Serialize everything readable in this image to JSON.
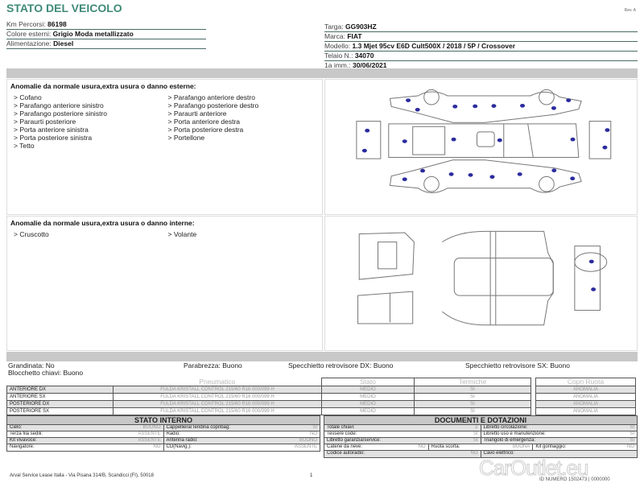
{
  "header": {
    "title": "STATO DEL VEICOLO",
    "rev": "Rev. A"
  },
  "vehicle_left": [
    {
      "label": "Km Percorsi:",
      "value": "86198"
    },
    {
      "label": "Colore esterni:",
      "value": "Grigio Moda metallizzato"
    },
    {
      "label": "Alimentazione:",
      "value": "Diesel"
    }
  ],
  "vehicle_right": [
    {
      "label": "Targa:",
      "value": "GG903HZ"
    },
    {
      "label": "Marca:",
      "value": "FIAT"
    },
    {
      "label": "Modello:",
      "value": "1.3 Mjet 95cv E6D Cult500X / 2018 / 5P / Crossover"
    },
    {
      "label": "Telaio N.:",
      "value": "34070"
    },
    {
      "label": "1a imm.:",
      "value": "30/06/2021"
    }
  ],
  "exterior": {
    "heading": "Anomalie da normale usura,extra usura o danno esterne:",
    "col1": [
      "> Cofano",
      "> Parafango anteriore sinistro",
      "> Parafango posteriore sinistro",
      "> Paraurti posteriore",
      "> Porta anteriore sinistra",
      "> Porta posteriore sinistra",
      "> Tetto"
    ],
    "col2": [
      "> Parafango anteriore destro",
      "> Parafango posteriore destro",
      "> Paraurti anteriore",
      "> Porta anteriore destra",
      "> Porta posteriore destra",
      "> Portellone"
    ]
  },
  "interior": {
    "heading": "Anomalie da normale usura,extra usura o danno interne:",
    "col1": [
      "> Cruscotto"
    ],
    "col2": [
      "> Volante"
    ]
  },
  "damage_dot_color": "#2b2b9e",
  "checks": {
    "grandinata": "Grandinata: No",
    "parabrezza": "Parabrezza: Buono",
    "specchietto_dx": "Specchietto retrovisore DX: Buono",
    "specchietto_sx": "Specchietto retrovisore SX: Buono",
    "blocchetto": "Blocchetto chiavi: Buono"
  },
  "tyres": {
    "headers": [
      "Pneumatico",
      "Stato",
      "Termiche",
      "Copri Ruota"
    ],
    "rows": [
      {
        "pos": "ANTERIORE DX",
        "tyre": "FULDA KRISTALL CONTROL 215/60 R16 000/099 H",
        "stato": "MEDIO",
        "termiche": "SI",
        "copri": "ANOMALIA"
      },
      {
        "pos": "ANTERIORE SX",
        "tyre": "FULDA KRISTALL CONTROL 215/60 R16 000/099 H",
        "stato": "MEDIO",
        "termiche": "SI",
        "copri": "ANOMALIA"
      },
      {
        "pos": "POSTERIORE DX",
        "tyre": "FULDA KRISTALL CONTROL 215/60 R16 000/099 H",
        "stato": "MEDIO",
        "termiche": "SI",
        "copri": "ANOMALIA"
      },
      {
        "pos": "POSTERIORE SX",
        "tyre": "FULDA KRISTALL CONTROL 215/60 R16 000/099 H",
        "stato": "MEDIO",
        "termiche": "SI",
        "copri": "ANOMALIA"
      }
    ]
  },
  "stato_interno": {
    "title": "STATO INTERNO",
    "rows": [
      [
        {
          "l": "Cielo:",
          "v": "BUONO"
        },
        {
          "l": "Cappelliera/Tendina copribag:",
          "v": "SI"
        }
      ],
      [
        {
          "l": "Terza fila sedili:",
          "v": "ASSENTE"
        },
        {
          "l": "Radio:",
          "v": "NO"
        }
      ],
      [
        {
          "l": "Kit vivavoce:",
          "v": "ASSENTE"
        },
        {
          "l": "Antenna radio:",
          "v": "BUONO"
        }
      ],
      [
        {
          "l": "Navigatore:",
          "v": "NO"
        },
        {
          "l": "CD(Navig.):",
          "v": "ASSENTE"
        }
      ]
    ]
  },
  "documenti": {
    "title": "DOCUMENTI E DOTAZIONI",
    "rows": [
      [
        {
          "l": "Totale chiavi:",
          "v": "2"
        },
        {
          "l": "Libretto circolazione:",
          "v": "SI"
        }
      ],
      [
        {
          "l": "Tessere code:",
          "v": "SI"
        },
        {
          "l": "Libretto uso e manutenzione:",
          "v": "SI"
        }
      ],
      [
        {
          "l": "Libretto garanzia/service:",
          "v": "SI"
        },
        {
          "l": "Triangolo di emergenza:",
          "v": "SI"
        }
      ],
      [
        {
          "l": "Catene da neve:",
          "v": "NO"
        },
        {
          "l": "Ruota scorta:",
          "v": "BUONA"
        },
        {
          "l": "Kit gonfiaggio:",
          "v": "NO"
        }
      ],
      [
        {
          "l": "Codice autoradio:",
          "v": "NO"
        },
        {
          "l": "Cavo elettrico:",
          "v": ""
        }
      ]
    ]
  },
  "footer": {
    "address": "Arval Service Lease Italia - Via Pisana 314/B, Scandicci (FI), 50018",
    "page": "1",
    "watermark": "CarOutlet.eu",
    "id": "ID NUMERO 1502473 | 0000000"
  }
}
